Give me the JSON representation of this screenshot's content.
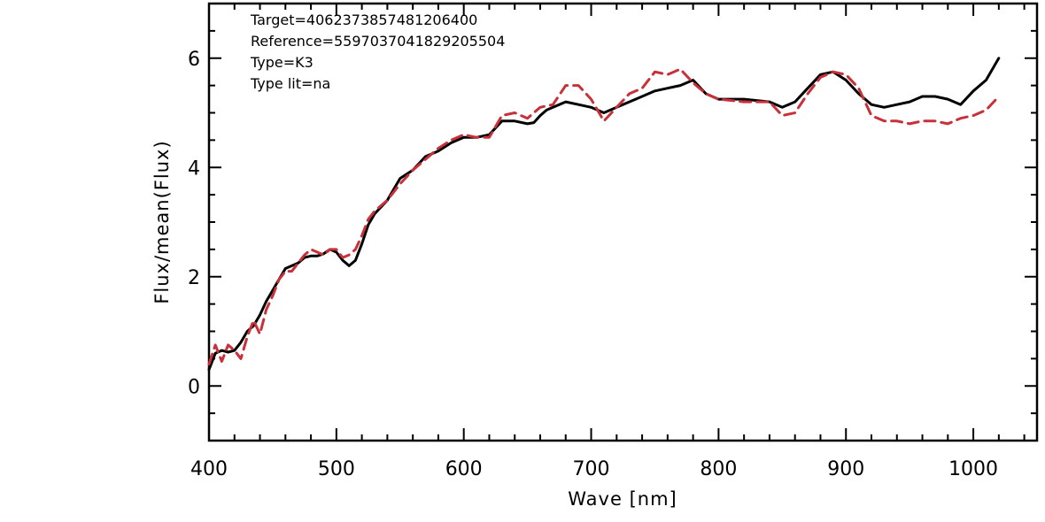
{
  "chart_data": {
    "type": "line",
    "title": "",
    "xlabel": "Wave [nm]",
    "ylabel": "Flux/mean(Flux)",
    "xlim": [
      400,
      1050
    ],
    "ylim": [
      -1,
      7
    ],
    "x_ticks": [
      400,
      500,
      600,
      700,
      800,
      900,
      1000
    ],
    "y_ticks": [
      0,
      2,
      4,
      6
    ],
    "grid": false,
    "annotations": [
      "Target=4062373857481206400",
      "Reference=5597037041829205504",
      "Type=K3",
      "Type lit=na"
    ],
    "colors": {
      "target": "#000000",
      "reference": "#c8303a"
    },
    "series": [
      {
        "style": "solid",
        "color": "#000000",
        "x": [
          400,
          405,
          410,
          415,
          420,
          425,
          430,
          435,
          440,
          445,
          450,
          455,
          460,
          465,
          470,
          475,
          480,
          485,
          490,
          495,
          500,
          505,
          510,
          515,
          520,
          525,
          530,
          540,
          550,
          560,
          570,
          580,
          590,
          600,
          610,
          620,
          630,
          640,
          650,
          655,
          660,
          665,
          670,
          680,
          690,
          700,
          710,
          720,
          730,
          740,
          750,
          760,
          770,
          780,
          790,
          800,
          820,
          840,
          850,
          860,
          870,
          880,
          890,
          900,
          910,
          920,
          930,
          940,
          950,
          960,
          970,
          980,
          990,
          1000,
          1010,
          1020
        ],
        "y": [
          0.3,
          0.6,
          0.65,
          0.62,
          0.65,
          0.8,
          1.0,
          1.1,
          1.3,
          1.55,
          1.75,
          1.95,
          2.15,
          2.2,
          2.25,
          2.35,
          2.38,
          2.38,
          2.42,
          2.5,
          2.45,
          2.3,
          2.2,
          2.3,
          2.6,
          2.95,
          3.15,
          3.4,
          3.8,
          3.95,
          4.2,
          4.3,
          4.45,
          4.55,
          4.55,
          4.6,
          4.85,
          4.85,
          4.8,
          4.82,
          4.95,
          5.05,
          5.1,
          5.2,
          5.15,
          5.1,
          5.0,
          5.1,
          5.2,
          5.3,
          5.4,
          5.45,
          5.5,
          5.6,
          5.35,
          5.25,
          5.25,
          5.2,
          5.1,
          5.2,
          5.45,
          5.7,
          5.75,
          5.6,
          5.35,
          5.15,
          5.1,
          5.15,
          5.2,
          5.3,
          5.3,
          5.25,
          5.15,
          5.4,
          5.6,
          6.0
        ]
      },
      {
        "style": "dashed",
        "color": "#c8303a",
        "x": [
          400,
          405,
          410,
          415,
          420,
          425,
          430,
          435,
          440,
          445,
          450,
          455,
          460,
          465,
          470,
          475,
          480,
          485,
          490,
          495,
          500,
          505,
          510,
          515,
          520,
          525,
          530,
          540,
          550,
          560,
          570,
          580,
          590,
          600,
          610,
          620,
          630,
          640,
          650,
          660,
          670,
          680,
          690,
          700,
          710,
          720,
          730,
          740,
          750,
          760,
          770,
          780,
          790,
          800,
          820,
          840,
          850,
          860,
          870,
          880,
          890,
          900,
          910,
          920,
          930,
          940,
          950,
          960,
          970,
          980,
          990,
          1000,
          1010,
          1020
        ],
        "y": [
          0.4,
          0.75,
          0.45,
          0.75,
          0.65,
          0.5,
          0.9,
          1.2,
          0.95,
          1.4,
          1.65,
          1.95,
          2.1,
          2.1,
          2.25,
          2.4,
          2.5,
          2.45,
          2.4,
          2.5,
          2.5,
          2.35,
          2.4,
          2.5,
          2.75,
          3.05,
          3.2,
          3.4,
          3.7,
          3.95,
          4.15,
          4.35,
          4.5,
          4.6,
          4.55,
          4.55,
          4.95,
          5.0,
          4.9,
          5.1,
          5.15,
          5.5,
          5.5,
          5.25,
          4.85,
          5.1,
          5.35,
          5.45,
          5.75,
          5.7,
          5.8,
          5.55,
          5.35,
          5.25,
          5.2,
          5.2,
          4.95,
          5.0,
          5.35,
          5.65,
          5.75,
          5.7,
          5.45,
          4.95,
          4.85,
          4.85,
          4.8,
          4.85,
          4.85,
          4.8,
          4.9,
          4.95,
          5.05,
          5.3
        ]
      }
    ]
  }
}
